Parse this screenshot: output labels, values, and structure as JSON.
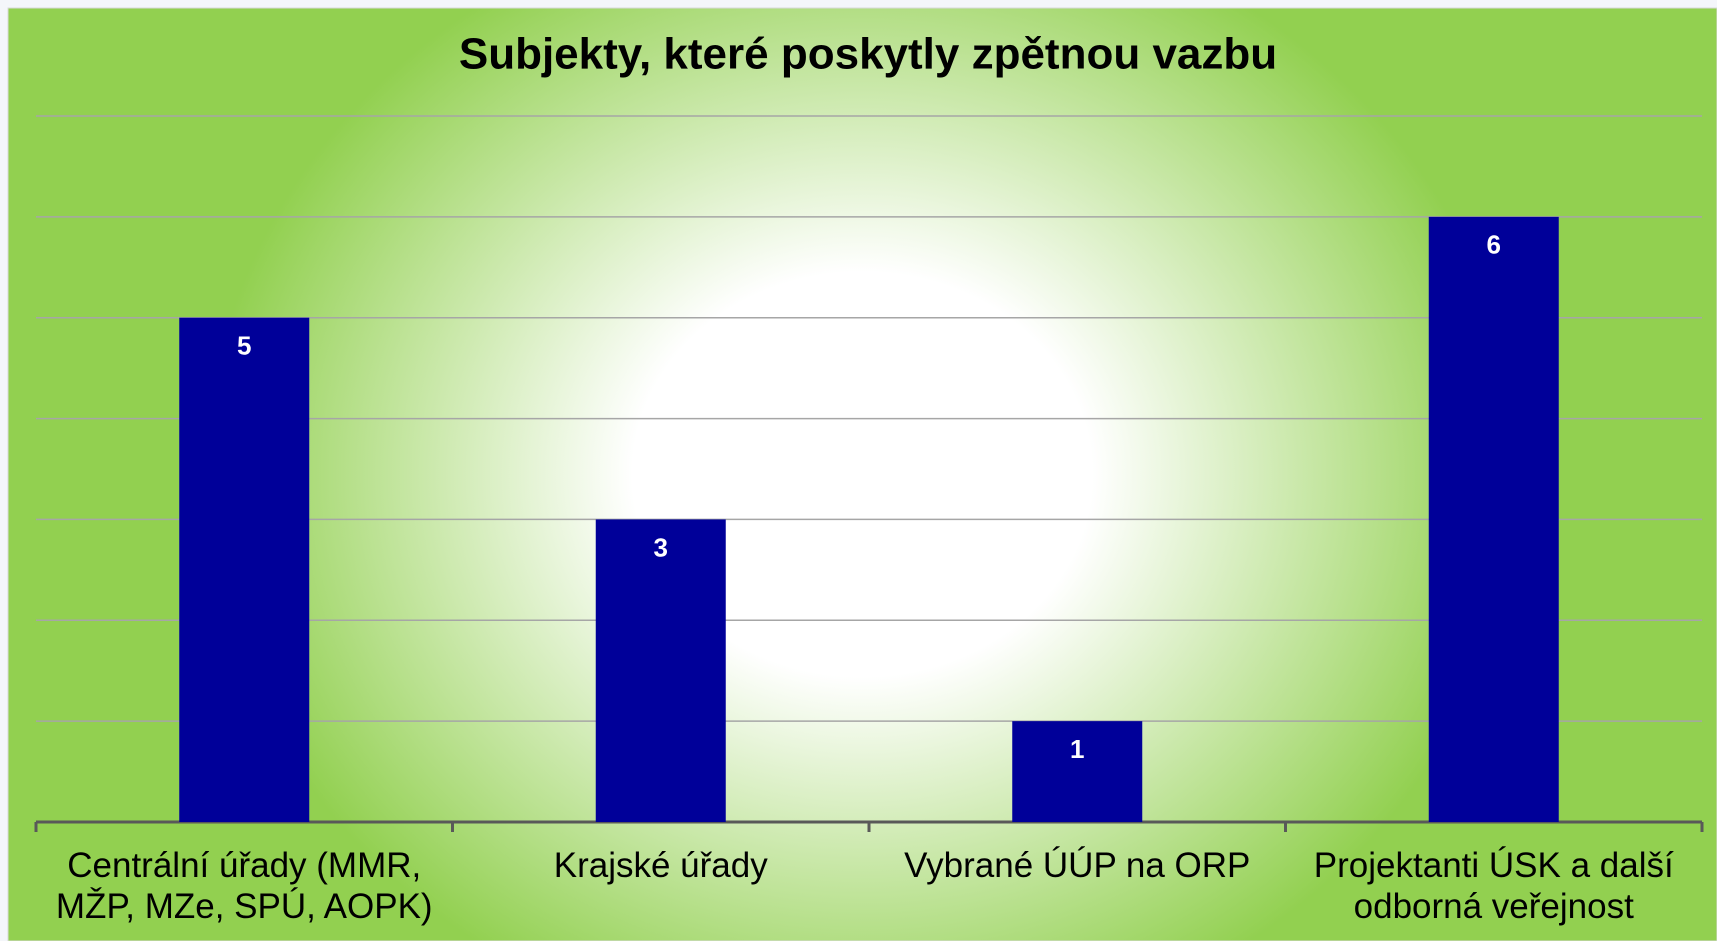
{
  "chart_data": {
    "type": "bar",
    "title": "Subjekty, které poskytly zpětnou vazbu",
    "categories": [
      "Centrální úřady (MMR, MŽP, MZe, SPÚ, AOPK)",
      "Krajské úřady",
      "Vybrané ÚÚP na ORP",
      "Projektanti ÚSK a další odborná veřejnost"
    ],
    "values": [
      5,
      3,
      1,
      6
    ],
    "color": "#000099",
    "ylim": [
      0,
      7
    ],
    "yticks": [
      0,
      1,
      2,
      3,
      4,
      5,
      6,
      7
    ],
    "grid": true
  }
}
